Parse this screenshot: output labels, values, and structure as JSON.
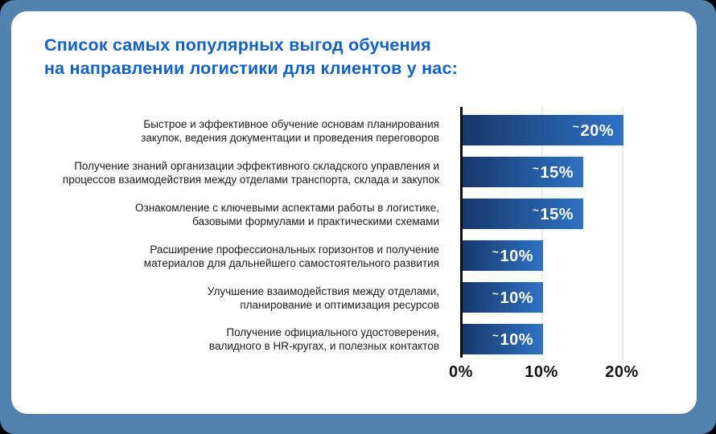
{
  "page": {
    "frame_background_color": "#5182ad",
    "card_background_color": "#ffffff"
  },
  "title": {
    "lines": [
      "Список самых популярных выгод обучения",
      "на направлении логистики для клиентов у нас:"
    ],
    "color": "#1161cb"
  },
  "chart_data": {
    "type": "bar",
    "orientation": "horizontal",
    "title": "Список самых популярных выгод обучения на направлении логистики для клиентов у нас:",
    "xlabel": "",
    "ylabel": "",
    "xlim": [
      0,
      20
    ],
    "xtick_values": [
      0,
      10,
      20
    ],
    "xtick_labels": [
      "0%",
      "10%",
      "20%"
    ],
    "grid": "vertical",
    "legend": "none",
    "bar_gradient": [
      "#17386a",
      "#2e72c6"
    ],
    "value_label_color": "#ffffff",
    "categories": [
      "Быстрое и эффективное обучение основам планирования закупок, ведения документации и проведения переговоров",
      "Получение знаний организации эффективного складского управления и процессов взаимодействия между отделами транспорта, склада и закупок",
      "Ознакомление с ключевыми аспектами работы в логистике, базовыми формулами и практическими схемами",
      "Расширение профессиональных горизонтов и получение материалов для дальнейшего самостоятельного развития",
      "Улучшение взаимодействия между отделами, планирование и оптимизация ресурсов",
      "Получение официального удостоверения, валидного в HR-кругах, и полезных контактов"
    ],
    "values": [
      20,
      15,
      15,
      10,
      10,
      10
    ],
    "bars": [
      {
        "label_lines": [
          "Быстрое и эффективное обучение основам планирования",
          "закупок, ведения документации и проведения переговоров"
        ],
        "value": 20,
        "approx": "~",
        "percent_label": "20%"
      },
      {
        "label_lines": [
          "Получение знаний организации эффективного складского управления и",
          "процессов взаимодействия между отделами транспорта, склада и закупок"
        ],
        "value": 15,
        "approx": "~",
        "percent_label": "15%"
      },
      {
        "label_lines": [
          "Ознакомление с ключевыми аспектами работы в логистике,",
          "базовыми формулами и практическими схемами"
        ],
        "value": 15,
        "approx": "~",
        "percent_label": "15%"
      },
      {
        "label_lines": [
          "Расширение профессиональных горизонтов и получение",
          "материалов для дальнейшего самостоятельного развития"
        ],
        "value": 10,
        "approx": "~",
        "percent_label": "10%"
      },
      {
        "label_lines": [
          "Улучшение взаимодействия между отделами,",
          "планирование и оптимизация ресурсов"
        ],
        "value": 10,
        "approx": "~",
        "percent_label": "10%"
      },
      {
        "label_lines": [
          "Получение официального удостоверения,",
          "валидного в HR-кругах, и полезных контактов"
        ],
        "value": 10,
        "approx": "~",
        "percent_label": "10%"
      }
    ]
  }
}
